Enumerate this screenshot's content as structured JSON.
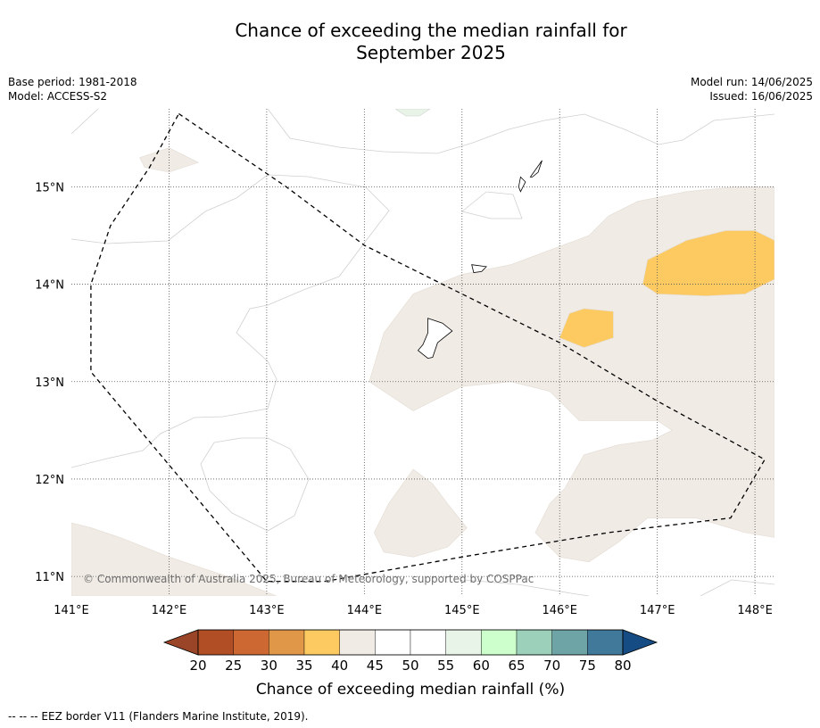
{
  "title_line1": "Chance of exceeding the median rainfall for",
  "title_line2": "September 2025",
  "meta": {
    "base_period": "Base period: 1981-2018",
    "model": "Model: ACCESS-S2",
    "model_run": "Model run: 14/06/2025",
    "issued": "Issued: 16/06/2025"
  },
  "map": {
    "lon_range": [
      141.0,
      148.2
    ],
    "lat_range": [
      10.8,
      15.8
    ],
    "lon_ticks": [
      {
        "value": 141,
        "label": "141°E"
      },
      {
        "value": 142,
        "label": "142°E"
      },
      {
        "value": 143,
        "label": "143°E"
      },
      {
        "value": 144,
        "label": "144°E"
      },
      {
        "value": 145,
        "label": "145°E"
      },
      {
        "value": 146,
        "label": "146°E"
      },
      {
        "value": 147,
        "label": "147°E"
      },
      {
        "value": 148,
        "label": "148°E"
      }
    ],
    "lat_ticks": [
      {
        "value": 11,
        "label": "11°N"
      },
      {
        "value": 12,
        "label": "12°N"
      },
      {
        "value": 13,
        "label": "13°N"
      },
      {
        "value": 14,
        "label": "14°N"
      },
      {
        "value": 15,
        "label": "15°N"
      }
    ],
    "grid": "dotted",
    "copyright": "© Commonwealth of Australia 2025, Bureau of Meteorology, supported by COSPPac",
    "regions": [
      {
        "class": "40-45",
        "color": "#f0ebe5",
        "coords": [
          [
            143.1,
            10.8
          ],
          [
            142.6,
            11.0
          ],
          [
            142.0,
            11.2
          ],
          [
            141.5,
            11.4
          ],
          [
            141.2,
            11.5
          ],
          [
            141.0,
            11.55
          ],
          [
            141.0,
            10.8
          ]
        ]
      },
      {
        "class": "40-45",
        "color": "#f0ebe5",
        "coords": [
          [
            141.7,
            15.3
          ],
          [
            142.0,
            15.4
          ],
          [
            142.3,
            15.25
          ],
          [
            142.0,
            15.15
          ],
          [
            141.75,
            15.2
          ]
        ]
      },
      {
        "class": "40-45",
        "color": "#f0ebe5",
        "coords": [
          [
            144.05,
            13.0
          ],
          [
            144.2,
            13.5
          ],
          [
            144.5,
            13.9
          ],
          [
            145.0,
            14.1
          ],
          [
            145.5,
            14.2
          ],
          [
            145.9,
            14.35
          ],
          [
            146.3,
            14.5
          ],
          [
            146.5,
            14.7
          ],
          [
            146.8,
            14.85
          ],
          [
            147.3,
            14.95
          ],
          [
            147.8,
            15.0
          ],
          [
            148.2,
            15.0
          ],
          [
            148.2,
            13.0
          ],
          [
            148.2,
            11.4
          ],
          [
            147.9,
            11.45
          ],
          [
            147.4,
            11.6
          ],
          [
            146.9,
            11.6
          ],
          [
            146.6,
            11.35
          ],
          [
            146.3,
            11.15
          ],
          [
            146.0,
            11.2
          ],
          [
            145.75,
            11.45
          ],
          [
            145.9,
            11.75
          ],
          [
            146.05,
            11.9
          ],
          [
            146.25,
            12.25
          ],
          [
            146.6,
            12.35
          ],
          [
            146.95,
            12.4
          ],
          [
            147.15,
            12.5
          ],
          [
            147.0,
            12.6
          ],
          [
            146.5,
            12.6
          ],
          [
            146.2,
            12.6
          ],
          [
            145.9,
            12.9
          ],
          [
            145.5,
            13.0
          ],
          [
            145.0,
            12.95
          ],
          [
            144.7,
            12.8
          ],
          [
            144.5,
            12.7
          ]
        ]
      },
      {
        "class": "40-45",
        "color": "#f0ebe5",
        "coords": [
          [
            144.5,
            12.1
          ],
          [
            144.7,
            11.95
          ],
          [
            144.85,
            11.75
          ],
          [
            145.05,
            11.5
          ],
          [
            144.85,
            11.3
          ],
          [
            144.5,
            11.2
          ],
          [
            144.2,
            11.25
          ],
          [
            144.1,
            11.45
          ],
          [
            144.25,
            11.75
          ]
        ]
      },
      {
        "class": "35-40",
        "color": "#fdca62",
        "coords": [
          [
            146.9,
            14.25
          ],
          [
            147.3,
            14.45
          ],
          [
            147.7,
            14.55
          ],
          [
            148.0,
            14.55
          ],
          [
            148.2,
            14.45
          ],
          [
            148.2,
            14.05
          ],
          [
            147.9,
            13.9
          ],
          [
            147.5,
            13.88
          ],
          [
            147.0,
            13.9
          ],
          [
            146.85,
            14.0
          ]
        ]
      },
      {
        "class": "35-40",
        "color": "#fdca62",
        "coords": [
          [
            146.1,
            13.7
          ],
          [
            146.25,
            13.75
          ],
          [
            146.55,
            13.72
          ],
          [
            146.55,
            13.45
          ],
          [
            146.25,
            13.35
          ],
          [
            146.0,
            13.45
          ]
        ]
      }
    ],
    "eez_border": [
      [
        142.1,
        15.75
      ],
      [
        143.2,
        15.0
      ],
      [
        144.0,
        14.4
      ],
      [
        145.0,
        13.9
      ],
      [
        146.0,
        13.4
      ],
      [
        147.0,
        12.8
      ],
      [
        148.1,
        12.2
      ],
      [
        147.75,
        11.6
      ],
      [
        146.5,
        11.45
      ],
      [
        145.0,
        11.2
      ],
      [
        143.6,
        10.95
      ],
      [
        143.0,
        10.95
      ],
      [
        141.2,
        13.1
      ],
      [
        141.2,
        13.6
      ],
      [
        141.2,
        14.0
      ],
      [
        141.4,
        14.6
      ],
      [
        141.8,
        15.2
      ],
      [
        142.1,
        15.75
      ]
    ],
    "islands": [
      {
        "name": "Guam",
        "coords": [
          [
            144.65,
            13.65
          ],
          [
            144.8,
            13.6
          ],
          [
            144.9,
            13.52
          ],
          [
            144.75,
            13.4
          ],
          [
            144.7,
            13.25
          ],
          [
            144.65,
            13.24
          ],
          [
            144.55,
            13.32
          ],
          [
            144.6,
            13.38
          ],
          [
            144.65,
            13.5
          ]
        ]
      },
      {
        "name": "Rota",
        "coords": [
          [
            145.1,
            14.2
          ],
          [
            145.25,
            14.18
          ],
          [
            145.2,
            14.13
          ],
          [
            145.12,
            14.12
          ]
        ]
      },
      {
        "name": "Tinian",
        "coords": [
          [
            145.6,
            14.95
          ],
          [
            145.65,
            15.05
          ],
          [
            145.6,
            15.1
          ],
          [
            145.58,
            15.0
          ]
        ]
      },
      {
        "name": "Saipan",
        "coords": [
          [
            145.7,
            15.1
          ],
          [
            145.82,
            15.27
          ],
          [
            145.78,
            15.15
          ],
          [
            145.72,
            15.1
          ]
        ]
      }
    ]
  },
  "colorbar": {
    "title": "Chance of exceeding median rainfall (%)",
    "ticks": [
      "20",
      "25",
      "30",
      "35",
      "40",
      "45",
      "50",
      "55",
      "60",
      "65",
      "70",
      "75",
      "80"
    ],
    "colors": [
      "#b24e26",
      "#cd6833",
      "#e09748",
      "#fdca62",
      "#f0ebe5",
      "#ffffff",
      "#ffffff",
      "#e8f4e7",
      "#ccffcc",
      "#9cd0ba",
      "#6ea4a6",
      "#41799a"
    ],
    "under_color": "#9b4528",
    "over_color": "#154c84"
  },
  "footer": "--  --  -- EEZ border V11 (Flanders Marine Institute, 2019)."
}
